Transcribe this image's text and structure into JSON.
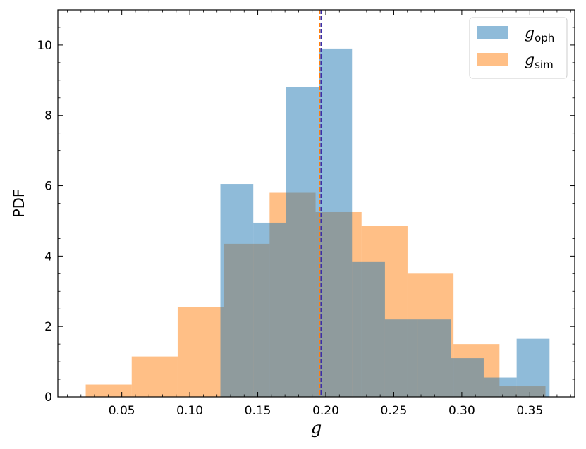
{
  "chart_data": {
    "type": "bar",
    "subtype": "overlapping-histogram",
    "xlabel": "g",
    "ylabel": "PDF",
    "xlim": [
      0.003,
      0.383
    ],
    "ylim": [
      0,
      11
    ],
    "xticks": [
      0.05,
      0.1,
      0.15,
      0.2,
      0.25,
      0.3,
      0.35
    ],
    "xtick_labels": [
      "0.05",
      "0.10",
      "0.15",
      "0.20",
      "0.25",
      "0.30",
      "0.35"
    ],
    "yticks": [
      0,
      2,
      4,
      6,
      8,
      10
    ],
    "ytick_labels": [
      "0",
      "2",
      "4",
      "6",
      "8",
      "10"
    ],
    "grid": false,
    "legend_position": "top-right",
    "series": [
      {
        "name": "g_oph",
        "legend_base": "g",
        "legend_sub": "oph",
        "color": "#1f77b4",
        "alpha": 0.5,
        "bin_edges": [
          0.1225,
          0.1467,
          0.1709,
          0.1951,
          0.2193,
          0.2435,
          0.2677,
          0.2919,
          0.3161,
          0.3403,
          0.3645
        ],
        "values": [
          6.05,
          4.95,
          8.8,
          9.9,
          3.85,
          2.2,
          2.2,
          1.1,
          0.55,
          1.65
        ],
        "mean": 0.1965
      },
      {
        "name": "g_sim",
        "legend_base": "g",
        "legend_sub": "sim",
        "color": "#ff7f0e",
        "alpha": 0.5,
        "bin_edges": [
          0.0235,
          0.0573,
          0.0911,
          0.1249,
          0.1587,
          0.1925,
          0.2263,
          0.2601,
          0.2939,
          0.3277,
          0.3615
        ],
        "values": [
          0.35,
          1.15,
          2.55,
          4.35,
          5.8,
          5.25,
          4.85,
          3.5,
          1.5,
          0.3
        ],
        "mean": 0.1955
      }
    ]
  }
}
